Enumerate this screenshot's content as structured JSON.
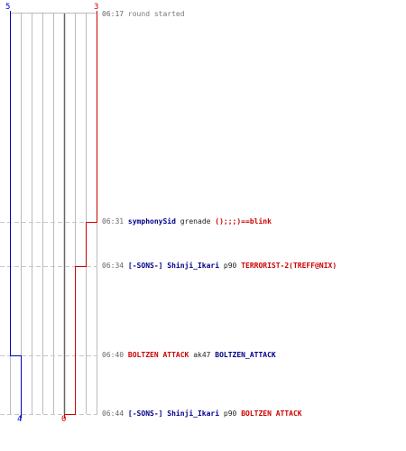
{
  "teams": {
    "blue": {
      "start_score": "5",
      "end_score": "4",
      "color": "#0000cc"
    },
    "red": {
      "start_score": "3",
      "end_score": "0",
      "color": "#cc0000"
    }
  },
  "events": [
    {
      "time": "06:17",
      "text": "round started"
    },
    {
      "time": "06:31",
      "killer": "symphonySid",
      "weapon": "grenade",
      "victim": "();;;)==blink"
    },
    {
      "time": "06:34",
      "killer": "[-SONS-] Shinji_Ikari",
      "weapon": "p90",
      "victim": "TERRORIST-2(TREFF@NIX)"
    },
    {
      "time": "06:40",
      "killer": "BOLTZEN ATTACK",
      "weapon": "ak47",
      "victim": "BOLTZEN_ATTACK"
    },
    {
      "time": "06:44",
      "killer": "[-SONS-] Shinji_Ikari",
      "weapon": "p90",
      "victim": "BOLTZEN ATTACK"
    }
  ]
}
